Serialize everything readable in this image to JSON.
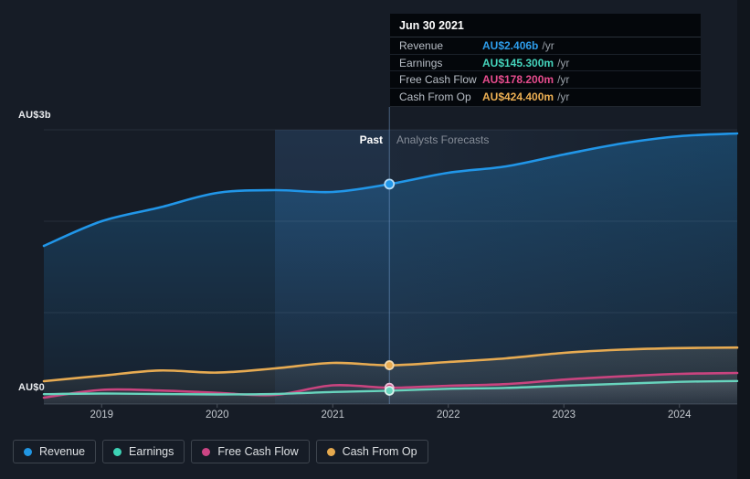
{
  "tooltip": {
    "date": "Jun 30 2021",
    "rows": [
      {
        "label": "Revenue",
        "value": "AU$2.406b",
        "suffix": "/yr",
        "color": "#2d9cea"
      },
      {
        "label": "Earnings",
        "value": "AU$145.300m",
        "suffix": "/yr",
        "color": "#45d4bc"
      },
      {
        "label": "Free Cash Flow",
        "value": "AU$178.200m",
        "suffix": "/yr",
        "color": "#e64c8d"
      },
      {
        "label": "Cash From Op",
        "value": "AU$424.400m",
        "suffix": "/yr",
        "color": "#ecaf53"
      }
    ]
  },
  "sections": {
    "past_label": "Past",
    "forecast_label": "Analysts Forecasts"
  },
  "axis": {
    "y_top_label": "AU$3b",
    "y_zero_label": "AU$0",
    "x_tick_years": [
      2019,
      2020,
      2021,
      2022,
      2023,
      2024
    ]
  },
  "legend": {
    "items": [
      {
        "label": "Revenue",
        "color": "#2196e3"
      },
      {
        "label": "Earnings",
        "color": "#3dd2b5"
      },
      {
        "label": "Free Cash Flow",
        "color": "#cc4584"
      },
      {
        "label": "Cash From Op",
        "color": "#e5a94e"
      }
    ]
  },
  "chart_data": {
    "type": "area",
    "title": "Past and forecast earnings and revenue (AU$, millions)",
    "x_unit": "year",
    "x": [
      2018.5,
      2019,
      2019.5,
      2020,
      2020.5,
      2021,
      2021.49,
      2022,
      2022.5,
      2023,
      2023.5,
      2024,
      2024.5
    ],
    "series": [
      {
        "name": "Revenue",
        "values_m": [
          1730,
          2000,
          2150,
          2310,
          2340,
          2320,
          2406,
          2530,
          2600,
          2730,
          2850,
          2930,
          2960
        ],
        "line_color": "#2196e8",
        "fill_top": "rgba(33,150,232,0.30)",
        "fill_bottom": "rgba(33,150,232,0.03)",
        "marker_stroke": "#b5dcf7",
        "line_width": 2.6
      },
      {
        "name": "Cash From Op",
        "values_m": [
          250,
          310,
          367,
          344,
          390,
          450,
          424.4,
          460,
          500,
          560,
          595,
          612,
          618
        ],
        "line_color": "#e7ab52",
        "fill_top": "rgba(225,215,185,0.14)",
        "fill_bottom": "rgba(225,215,185,0.03)",
        "marker_stroke": "#f2d8ad",
        "line_width": 2.6
      },
      {
        "name": "Free Cash Flow",
        "values_m": [
          70,
          155,
          148,
          122,
          100,
          205,
          178.2,
          200,
          218,
          267,
          303,
          330,
          340
        ],
        "line_color": "#c9447f",
        "fill_top": "rgba(205,205,215,0.10)",
        "fill_bottom": "rgba(205,205,215,0.03)",
        "marker_stroke": "#eec0d8",
        "line_width": 2.6
      },
      {
        "name": "Earnings",
        "values_m": [
          108,
          115,
          110,
          105,
          110,
          132,
          145.3,
          167,
          177,
          200,
          222,
          243,
          252
        ],
        "line_color": "#68d4bd",
        "fill_top": "rgba(210,218,222,0.12)",
        "fill_bottom": "rgba(210,218,222,0.03)",
        "marker_stroke": "#d9f2ec",
        "line_width": 2.4
      }
    ],
    "marker_x": 2021.49,
    "divider_x": 2021.49,
    "highlight_band_x": [
      2020.5,
      2021.49
    ],
    "ylim_m": [
      0,
      3000
    ],
    "y_gridlines_m": [
      0,
      1000,
      2000,
      3000
    ],
    "xlim": [
      2018.5,
      2024.5
    ],
    "legend_position": "bottom",
    "colors": {
      "gridline": "rgba(190,205,225,0.10)",
      "baseline": "rgba(190,205,225,0.22)",
      "divider": "rgba(135,180,235,0.45)",
      "forecast_bg_left": "rgba(95,155,225,0.10)",
      "forecast_bg_right": "rgba(95,155,225,0.02)",
      "band_top": "rgba(85,160,245,0.17)",
      "band_bottom": "rgba(85,160,245,0.05)",
      "tick": "#4b525c"
    }
  }
}
